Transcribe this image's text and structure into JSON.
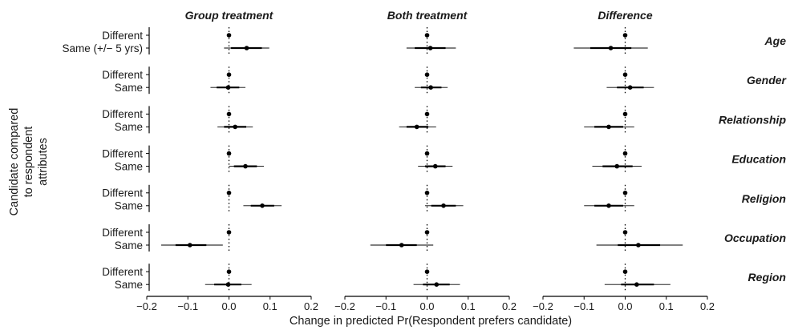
{
  "chart_data": {
    "type": "scatter",
    "subtype": "coefficient-plot",
    "ylabel": "Candidate compared to respondent attributes",
    "xlabel": "Change in predicted Pr(Respondent prefers candidate)",
    "xlim": [
      -0.2,
      0.2
    ],
    "xticks": [
      -0.2,
      -0.1,
      0.0,
      0.1,
      0.2
    ],
    "xtick_labels": [
      "−0.2",
      "−0.1",
      "0.0",
      "0.1",
      "0.2"
    ],
    "reference_line": 0,
    "grid": false,
    "facet_columns": [
      "Group treatment",
      "Both treatment",
      "Difference"
    ],
    "facet_rows": [
      "Age",
      "Gender",
      "Relationship",
      "Education",
      "Religion",
      "Occupation",
      "Region"
    ],
    "levels": {
      "Age": [
        "Different",
        "Same (+/− 5 yrs)"
      ],
      "Gender": [
        "Different",
        "Same"
      ],
      "Relationship": [
        "Different",
        "Same"
      ],
      "Education": [
        "Different",
        "Same"
      ],
      "Religion": [
        "Different",
        "Same"
      ],
      "Occupation": [
        "Different",
        "Same"
      ],
      "Region": [
        "Different",
        "Same"
      ]
    },
    "panels": [
      {
        "facet_column": "Group treatment",
        "estimates": [
          {
            "attribute": "Age",
            "level": "Different",
            "est": 0,
            "lo90": 0,
            "hi90": 0,
            "lo95": 0,
            "hi95": 0
          },
          {
            "attribute": "Age",
            "level": "Same (+/− 5 yrs)",
            "est": 0.043,
            "lo90": 0.005,
            "hi90": 0.08,
            "lo95": -0.012,
            "hi95": 0.098
          },
          {
            "attribute": "Gender",
            "level": "Different",
            "est": 0,
            "lo90": 0,
            "hi90": 0,
            "lo95": 0,
            "hi95": 0
          },
          {
            "attribute": "Gender",
            "level": "Same",
            "est": -0.002,
            "lo90": -0.03,
            "hi90": 0.025,
            "lo95": -0.045,
            "hi95": 0.04
          },
          {
            "attribute": "Relationship",
            "level": "Different",
            "est": 0,
            "lo90": 0,
            "hi90": 0,
            "lo95": 0,
            "hi95": 0
          },
          {
            "attribute": "Relationship",
            "level": "Same",
            "est": 0.015,
            "lo90": -0.012,
            "hi90": 0.042,
            "lo95": -0.028,
            "hi95": 0.058
          },
          {
            "attribute": "Education",
            "level": "Different",
            "est": 0,
            "lo90": 0,
            "hi90": 0,
            "lo95": 0,
            "hi95": 0
          },
          {
            "attribute": "Education",
            "level": "Same",
            "est": 0.04,
            "lo90": 0.012,
            "hi90": 0.068,
            "lo95": 0.0,
            "hi95": 0.085
          },
          {
            "attribute": "Religion",
            "level": "Different",
            "est": 0,
            "lo90": 0,
            "hi90": 0,
            "lo95": 0,
            "hi95": 0
          },
          {
            "attribute": "Religion",
            "level": "Same",
            "est": 0.081,
            "lo90": 0.053,
            "hi90": 0.11,
            "lo95": 0.035,
            "hi95": 0.128
          },
          {
            "attribute": "Occupation",
            "level": "Different",
            "est": 0,
            "lo90": 0,
            "hi90": 0,
            "lo95": 0,
            "hi95": 0
          },
          {
            "attribute": "Occupation",
            "level": "Same",
            "est": -0.095,
            "lo90": -0.13,
            "hi90": -0.055,
            "lo95": -0.165,
            "hi95": -0.015
          },
          {
            "attribute": "Region",
            "level": "Different",
            "est": 0,
            "lo90": 0,
            "hi90": 0,
            "lo95": 0,
            "hi95": 0
          },
          {
            "attribute": "Region",
            "level": "Same",
            "est": -0.002,
            "lo90": -0.036,
            "hi90": 0.03,
            "lo95": -0.058,
            "hi95": 0.055
          }
        ]
      },
      {
        "facet_column": "Both treatment",
        "estimates": [
          {
            "attribute": "Age",
            "level": "Different",
            "est": 0,
            "lo90": 0,
            "hi90": 0,
            "lo95": 0,
            "hi95": 0
          },
          {
            "attribute": "Age",
            "level": "Same (+/− 5 yrs)",
            "est": 0.008,
            "lo90": -0.03,
            "hi90": 0.045,
            "lo95": -0.05,
            "hi95": 0.07
          },
          {
            "attribute": "Gender",
            "level": "Different",
            "est": 0,
            "lo90": 0,
            "hi90": 0,
            "lo95": 0,
            "hi95": 0
          },
          {
            "attribute": "Gender",
            "level": "Same",
            "est": 0.009,
            "lo90": -0.015,
            "hi90": 0.035,
            "lo95": -0.03,
            "hi95": 0.05
          },
          {
            "attribute": "Relationship",
            "level": "Different",
            "est": 0,
            "lo90": 0,
            "hi90": 0,
            "lo95": 0,
            "hi95": 0
          },
          {
            "attribute": "Relationship",
            "level": "Same",
            "est": -0.025,
            "lo90": -0.05,
            "hi90": 0.003,
            "lo95": -0.068,
            "hi95": 0.022
          },
          {
            "attribute": "Education",
            "level": "Different",
            "est": 0,
            "lo90": 0,
            "hi90": 0,
            "lo95": 0,
            "hi95": 0
          },
          {
            "attribute": "Education",
            "level": "Same",
            "est": 0.02,
            "lo90": -0.005,
            "hi90": 0.045,
            "lo95": -0.022,
            "hi95": 0.062
          },
          {
            "attribute": "Religion",
            "level": "Different",
            "est": 0,
            "lo90": 0,
            "hi90": 0,
            "lo95": 0,
            "hi95": 0
          },
          {
            "attribute": "Religion",
            "level": "Same",
            "est": 0.04,
            "lo90": 0.01,
            "hi90": 0.07,
            "lo95": -0.005,
            "hi95": 0.088
          },
          {
            "attribute": "Occupation",
            "level": "Different",
            "est": 0,
            "lo90": 0,
            "hi90": 0,
            "lo95": 0,
            "hi95": 0
          },
          {
            "attribute": "Occupation",
            "level": "Same",
            "est": -0.062,
            "lo90": -0.1,
            "hi90": -0.025,
            "lo95": -0.138,
            "hi95": 0.015
          },
          {
            "attribute": "Region",
            "level": "Different",
            "est": 0,
            "lo90": 0,
            "hi90": 0,
            "lo95": 0,
            "hi95": 0
          },
          {
            "attribute": "Region",
            "level": "Same",
            "est": 0.023,
            "lo90": -0.01,
            "hi90": 0.055,
            "lo95": -0.033,
            "hi95": 0.08
          }
        ]
      },
      {
        "facet_column": "Difference",
        "estimates": [
          {
            "attribute": "Age",
            "level": "Different",
            "est": 0,
            "lo90": 0,
            "hi90": 0,
            "lo95": 0,
            "hi95": 0
          },
          {
            "attribute": "Age",
            "level": "Same (+/− 5 yrs)",
            "est": -0.035,
            "lo90": -0.085,
            "hi90": 0.015,
            "lo95": -0.125,
            "hi95": 0.055
          },
          {
            "attribute": "Gender",
            "level": "Different",
            "est": 0,
            "lo90": 0,
            "hi90": 0,
            "lo95": 0,
            "hi95": 0
          },
          {
            "attribute": "Gender",
            "level": "Same",
            "est": 0.012,
            "lo90": -0.02,
            "hi90": 0.045,
            "lo95": -0.045,
            "hi95": 0.07
          },
          {
            "attribute": "Relationship",
            "level": "Different",
            "est": 0,
            "lo90": 0,
            "hi90": 0,
            "lo95": 0,
            "hi95": 0
          },
          {
            "attribute": "Relationship",
            "level": "Same",
            "est": -0.04,
            "lo90": -0.075,
            "hi90": -0.005,
            "lo95": -0.1,
            "hi95": 0.022
          },
          {
            "attribute": "Education",
            "level": "Different",
            "est": 0,
            "lo90": 0,
            "hi90": 0,
            "lo95": 0,
            "hi95": 0
          },
          {
            "attribute": "Education",
            "level": "Same",
            "est": -0.02,
            "lo90": -0.055,
            "hi90": 0.018,
            "lo95": -0.08,
            "hi95": 0.04
          },
          {
            "attribute": "Religion",
            "level": "Different",
            "est": 0,
            "lo90": 0,
            "hi90": 0,
            "lo95": 0,
            "hi95": 0
          },
          {
            "attribute": "Religion",
            "level": "Same",
            "est": -0.04,
            "lo90": -0.075,
            "hi90": -0.005,
            "lo95": -0.1,
            "hi95": 0.022
          },
          {
            "attribute": "Occupation",
            "level": "Different",
            "est": 0,
            "lo90": 0,
            "hi90": 0,
            "lo95": 0,
            "hi95": 0
          },
          {
            "attribute": "Occupation",
            "level": "Same",
            "est": 0.032,
            "lo90": -0.018,
            "hi90": 0.085,
            "lo95": -0.07,
            "hi95": 0.14
          },
          {
            "attribute": "Region",
            "level": "Different",
            "est": 0,
            "lo90": 0,
            "hi90": 0,
            "lo95": 0,
            "hi95": 0
          },
          {
            "attribute": "Region",
            "level": "Same",
            "est": 0.028,
            "lo90": -0.01,
            "hi90": 0.07,
            "lo95": -0.05,
            "hi95": 0.11
          }
        ]
      }
    ],
    "colors": {
      "marks": "#000000",
      "ci95": "#000000",
      "ci90": "#000000",
      "reference_line": "#000000"
    }
  }
}
